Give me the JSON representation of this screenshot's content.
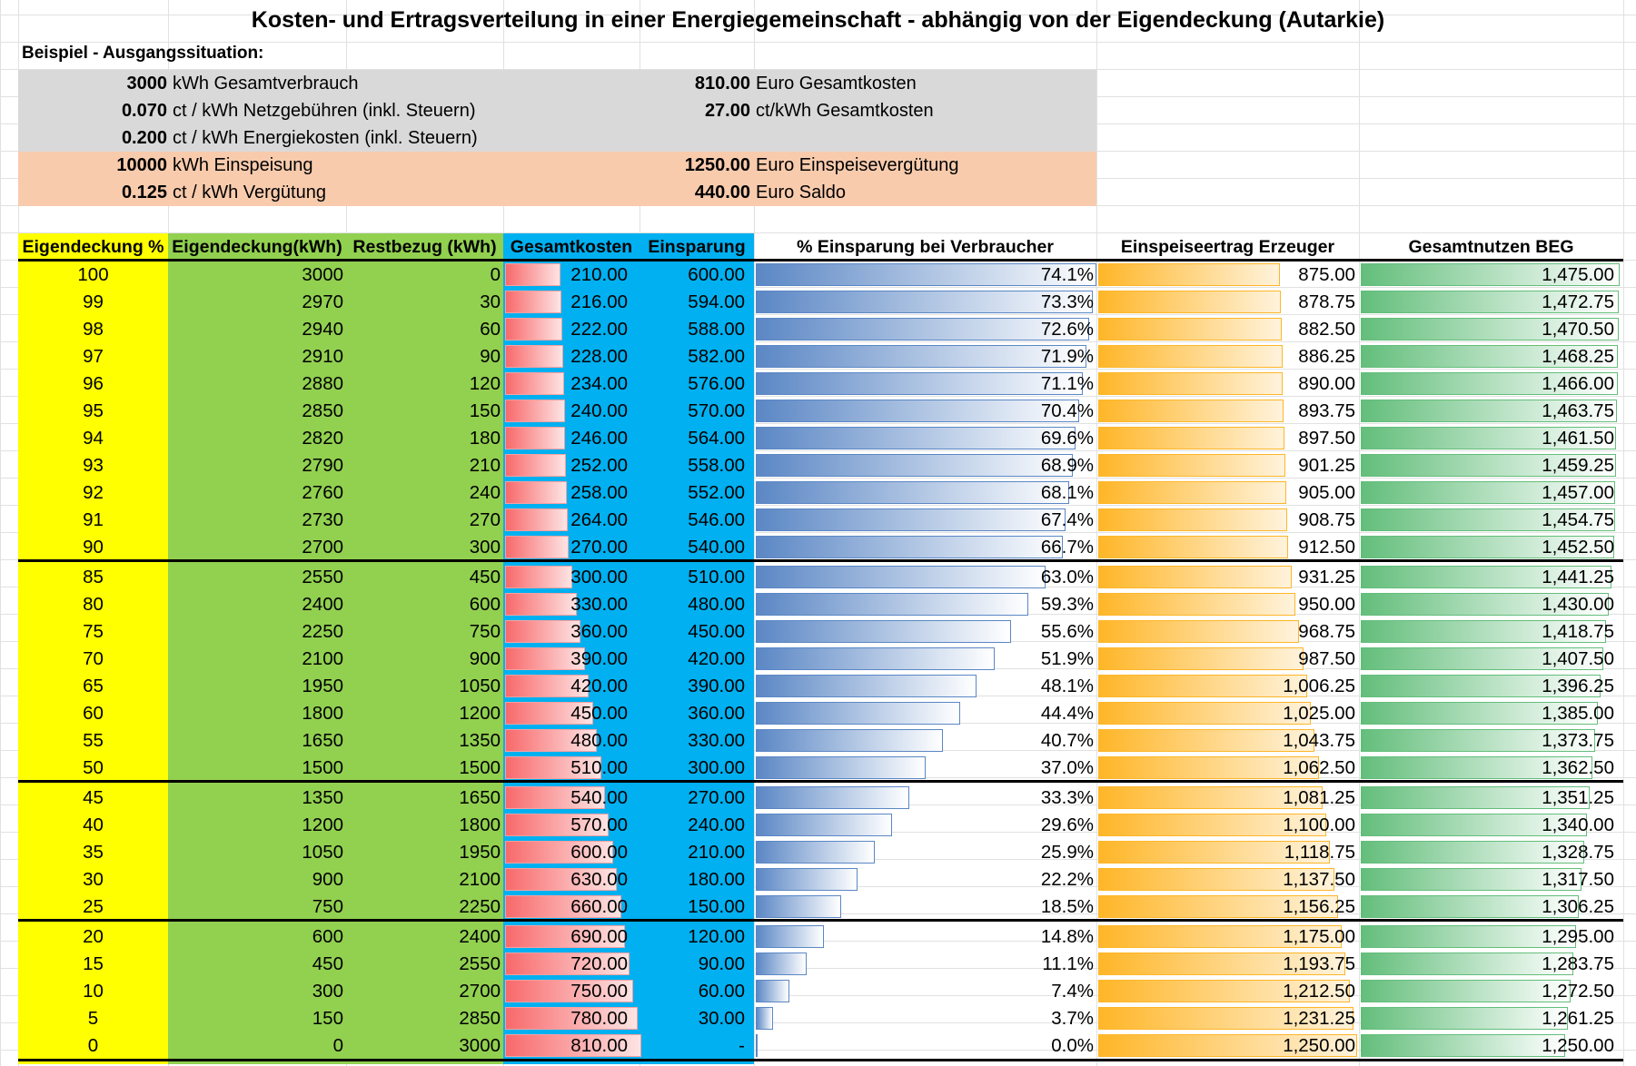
{
  "title": "Kosten- und Ertragsverteilung in einer Energiegemeinschaft - abhängig von der Eigendeckung (Autarkie)",
  "subtitle": "Beispiel - Ausgangssituation:",
  "info_left": [
    {
      "value": "3000",
      "label": "kWh Gesamtverbrauch",
      "band": "grey"
    },
    {
      "value": "0.070",
      "label": "ct / kWh Netzgebühren (inkl. Steuern)",
      "band": "grey"
    },
    {
      "value": "0.200",
      "label": "ct / kWh Energiekosten (inkl. Steuern)",
      "band": "grey"
    },
    {
      "value": "10000",
      "label": "kWh Einspeisung",
      "band": "peach"
    },
    {
      "value": "0.125",
      "label": "ct / kWh Vergütung",
      "band": "peach"
    }
  ],
  "info_right": [
    {
      "value": "810.00",
      "label": "Euro Gesamtkosten"
    },
    {
      "value": "27.00",
      "label": "ct/kWh Gesamtkosten"
    },
    {
      "value": "",
      "label": ""
    },
    {
      "value": "1250.00",
      "label": "Euro Einspeisevergütung"
    },
    {
      "value": "440.00",
      "label": "Euro Saldo"
    }
  ],
  "headers": {
    "eigendeckung_pct": "Eigendeckung %",
    "eigendeckung_kwh": "Eigendeckung(kWh)",
    "restbezug": "Restbezug (kWh)",
    "gesamtkosten": "Gesamtkosten",
    "einsparung": "Einsparung",
    "pct_einsparung": "% Einsparung bei Verbraucher",
    "einspeiseertrag": "Einspeiseertrag Erzeuger",
    "gesamtnutzen": "Gesamtnutzen BEG"
  },
  "colors": {
    "yellow": "#ffff00",
    "green": "#92d050",
    "blue": "#00b0f0",
    "grey_band": "#d9d9d9",
    "peach_band": "#f8cbad"
  },
  "rows": [
    {
      "p": "100",
      "kwh": "3000",
      "rest": "0",
      "kosten": "210.00",
      "spar": "600.00",
      "pct": "74.1%",
      "ertrag": "875.00",
      "nutzen": "1,475.00"
    },
    {
      "p": "99",
      "kwh": "2970",
      "rest": "30",
      "kosten": "216.00",
      "spar": "594.00",
      "pct": "73.3%",
      "ertrag": "878.75",
      "nutzen": "1,472.75"
    },
    {
      "p": "98",
      "kwh": "2940",
      "rest": "60",
      "kosten": "222.00",
      "spar": "588.00",
      "pct": "72.6%",
      "ertrag": "882.50",
      "nutzen": "1,470.50"
    },
    {
      "p": "97",
      "kwh": "2910",
      "rest": "90",
      "kosten": "228.00",
      "spar": "582.00",
      "pct": "71.9%",
      "ertrag": "886.25",
      "nutzen": "1,468.25"
    },
    {
      "p": "96",
      "kwh": "2880",
      "rest": "120",
      "kosten": "234.00",
      "spar": "576.00",
      "pct": "71.1%",
      "ertrag": "890.00",
      "nutzen": "1,466.00"
    },
    {
      "p": "95",
      "kwh": "2850",
      "rest": "150",
      "kosten": "240.00",
      "spar": "570.00",
      "pct": "70.4%",
      "ertrag": "893.75",
      "nutzen": "1,463.75"
    },
    {
      "p": "94",
      "kwh": "2820",
      "rest": "180",
      "kosten": "246.00",
      "spar": "564.00",
      "pct": "69.6%",
      "ertrag": "897.50",
      "nutzen": "1,461.50"
    },
    {
      "p": "93",
      "kwh": "2790",
      "rest": "210",
      "kosten": "252.00",
      "spar": "558.00",
      "pct": "68.9%",
      "ertrag": "901.25",
      "nutzen": "1,459.25"
    },
    {
      "p": "92",
      "kwh": "2760",
      "rest": "240",
      "kosten": "258.00",
      "spar": "552.00",
      "pct": "68.1%",
      "ertrag": "905.00",
      "nutzen": "1,457.00"
    },
    {
      "p": "91",
      "kwh": "2730",
      "rest": "270",
      "kosten": "264.00",
      "spar": "546.00",
      "pct": "67.4%",
      "ertrag": "908.75",
      "nutzen": "1,454.75"
    },
    {
      "p": "90",
      "kwh": "2700",
      "rest": "300",
      "kosten": "270.00",
      "spar": "540.00",
      "pct": "66.7%",
      "ertrag": "912.50",
      "nutzen": "1,452.50"
    },
    {
      "p": "85",
      "kwh": "2550",
      "rest": "450",
      "kosten": "300.00",
      "spar": "510.00",
      "pct": "63.0%",
      "ertrag": "931.25",
      "nutzen": "1,441.25"
    },
    {
      "p": "80",
      "kwh": "2400",
      "rest": "600",
      "kosten": "330.00",
      "spar": "480.00",
      "pct": "59.3%",
      "ertrag": "950.00",
      "nutzen": "1,430.00"
    },
    {
      "p": "75",
      "kwh": "2250",
      "rest": "750",
      "kosten": "360.00",
      "spar": "450.00",
      "pct": "55.6%",
      "ertrag": "968.75",
      "nutzen": "1,418.75"
    },
    {
      "p": "70",
      "kwh": "2100",
      "rest": "900",
      "kosten": "390.00",
      "spar": "420.00",
      "pct": "51.9%",
      "ertrag": "987.50",
      "nutzen": "1,407.50"
    },
    {
      "p": "65",
      "kwh": "1950",
      "rest": "1050",
      "kosten": "420.00",
      "spar": "390.00",
      "pct": "48.1%",
      "ertrag": "1,006.25",
      "nutzen": "1,396.25"
    },
    {
      "p": "60",
      "kwh": "1800",
      "rest": "1200",
      "kosten": "450.00",
      "spar": "360.00",
      "pct": "44.4%",
      "ertrag": "1,025.00",
      "nutzen": "1,385.00"
    },
    {
      "p": "55",
      "kwh": "1650",
      "rest": "1350",
      "kosten": "480.00",
      "spar": "330.00",
      "pct": "40.7%",
      "ertrag": "1,043.75",
      "nutzen": "1,373.75"
    },
    {
      "p": "50",
      "kwh": "1500",
      "rest": "1500",
      "kosten": "510.00",
      "spar": "300.00",
      "pct": "37.0%",
      "ertrag": "1,062.50",
      "nutzen": "1,362.50"
    },
    {
      "p": "45",
      "kwh": "1350",
      "rest": "1650",
      "kosten": "540.00",
      "spar": "270.00",
      "pct": "33.3%",
      "ertrag": "1,081.25",
      "nutzen": "1,351.25"
    },
    {
      "p": "40",
      "kwh": "1200",
      "rest": "1800",
      "kosten": "570.00",
      "spar": "240.00",
      "pct": "29.6%",
      "ertrag": "1,100.00",
      "nutzen": "1,340.00"
    },
    {
      "p": "35",
      "kwh": "1050",
      "rest": "1950",
      "kosten": "600.00",
      "spar": "210.00",
      "pct": "25.9%",
      "ertrag": "1,118.75",
      "nutzen": "1,328.75"
    },
    {
      "p": "30",
      "kwh": "900",
      "rest": "2100",
      "kosten": "630.00",
      "spar": "180.00",
      "pct": "22.2%",
      "ertrag": "1,137.50",
      "nutzen": "1,317.50"
    },
    {
      "p": "25",
      "kwh": "750",
      "rest": "2250",
      "kosten": "660.00",
      "spar": "150.00",
      "pct": "18.5%",
      "ertrag": "1,156.25",
      "nutzen": "1,306.25"
    },
    {
      "p": "20",
      "kwh": "600",
      "rest": "2400",
      "kosten": "690.00",
      "spar": "120.00",
      "pct": "14.8%",
      "ertrag": "1,175.00",
      "nutzen": "1,295.00"
    },
    {
      "p": "15",
      "kwh": "450",
      "rest": "2550",
      "kosten": "720.00",
      "spar": "90.00",
      "pct": "11.1%",
      "ertrag": "1,193.75",
      "nutzen": "1,283.75"
    },
    {
      "p": "10",
      "kwh": "300",
      "rest": "2700",
      "kosten": "750.00",
      "spar": "60.00",
      "pct": "7.4%",
      "ertrag": "1,212.50",
      "nutzen": "1,272.50"
    },
    {
      "p": "5",
      "kwh": "150",
      "rest": "2850",
      "kosten": "780.00",
      "spar": "30.00",
      "pct": "3.7%",
      "ertrag": "1,231.25",
      "nutzen": "1,261.25"
    },
    {
      "p": "0",
      "kwh": "0",
      "rest": "3000",
      "kosten": "810.00",
      "spar": "-",
      "pct": "0.0%",
      "ertrag": "1,250.00",
      "nutzen": "1,250.00"
    }
  ]
}
